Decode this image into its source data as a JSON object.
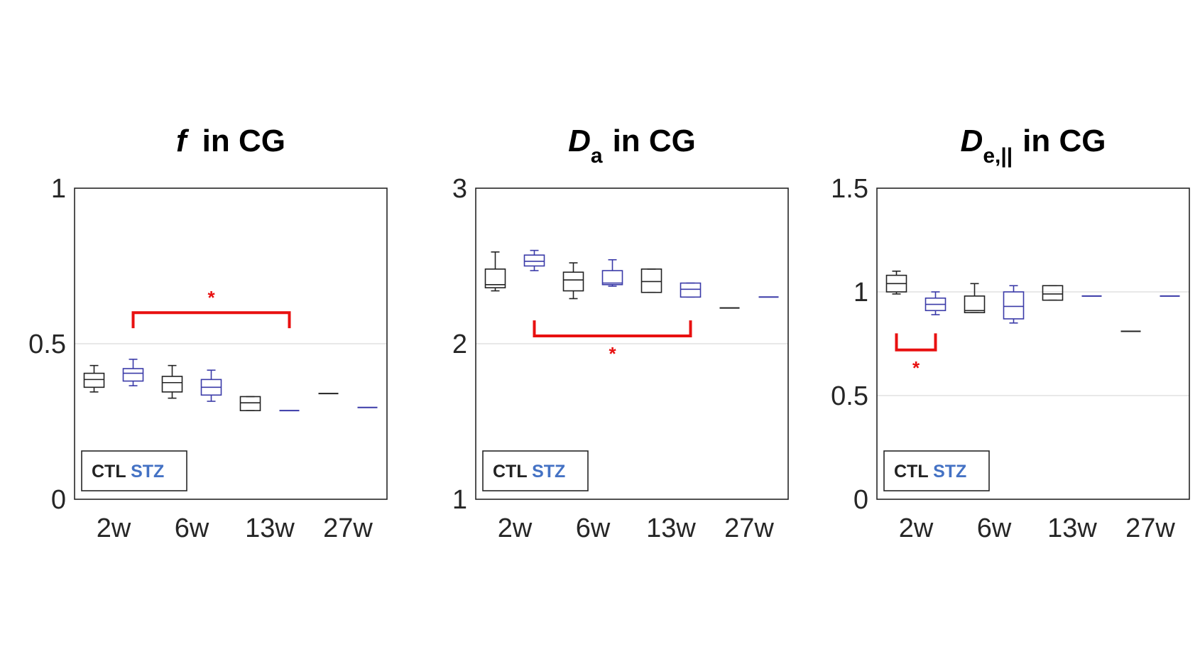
{
  "chart_data": [
    {
      "type": "box",
      "title_main": "f",
      "title_sub": "",
      "title_rest": "in CG",
      "title_main_italic": true,
      "categories": [
        "2w",
        "6w",
        "13w",
        "27w"
      ],
      "ylim": [
        0,
        1
      ],
      "yticks": [
        0,
        0.5,
        1
      ],
      "ytick_labels": [
        "0",
        "0.5",
        "1"
      ],
      "legend": {
        "ctl": "CTL",
        "stz": "STZ",
        "placement": "bottom-left"
      },
      "series": [
        {
          "name": "CTL",
          "color": "#222222",
          "boxes": [
            {
              "category": "2w",
              "min": 0.345,
              "q1": 0.36,
              "median": 0.385,
              "q3": 0.405,
              "max": 0.43
            },
            {
              "category": "6w",
              "min": 0.325,
              "q1": 0.345,
              "median": 0.375,
              "q3": 0.395,
              "max": 0.43
            },
            {
              "category": "13w",
              "min": 0.285,
              "q1": 0.285,
              "median": 0.31,
              "q3": 0.33,
              "max": 0.33
            },
            {
              "category": "27w",
              "min": 0.34,
              "q1": 0.34,
              "median": 0.34,
              "q3": 0.34,
              "max": 0.34
            }
          ]
        },
        {
          "name": "STZ",
          "color": "#3a3aa8",
          "boxes": [
            {
              "category": "2w",
              "min": 0.365,
              "q1": 0.38,
              "median": 0.405,
              "q3": 0.42,
              "max": 0.45
            },
            {
              "category": "6w",
              "min": 0.315,
              "q1": 0.335,
              "median": 0.36,
              "q3": 0.385,
              "max": 0.415
            },
            {
              "category": "13w",
              "min": 0.285,
              "q1": 0.285,
              "median": 0.285,
              "q3": 0.285,
              "max": 0.285
            },
            {
              "category": "27w",
              "min": 0.295,
              "q1": 0.295,
              "median": 0.295,
              "q3": 0.295,
              "max": 0.295
            }
          ]
        }
      ],
      "significance": [
        {
          "label": "*",
          "from": "STZ 2w",
          "to": "STZ 13w",
          "bracket_value": 0.6,
          "tick_end": 0.55,
          "side": "above"
        }
      ]
    },
    {
      "type": "box",
      "title_main": "D",
      "title_sub": "a",
      "title_rest": "in CG",
      "title_main_italic": true,
      "categories": [
        "2w",
        "6w",
        "13w",
        "27w"
      ],
      "ylim": [
        1,
        3
      ],
      "yticks": [
        1,
        2,
        3
      ],
      "ytick_labels": [
        "1",
        "2",
        "3"
      ],
      "legend": {
        "ctl": "CTL",
        "stz": "STZ",
        "placement": "bottom-left"
      },
      "series": [
        {
          "name": "CTL",
          "color": "#222222",
          "boxes": [
            {
              "category": "2w",
              "min": 2.34,
              "q1": 2.36,
              "median": 2.38,
              "q3": 2.48,
              "max": 2.59
            },
            {
              "category": "6w",
              "min": 2.29,
              "q1": 2.34,
              "median": 2.41,
              "q3": 2.46,
              "max": 2.52
            },
            {
              "category": "13w",
              "min": 2.33,
              "q1": 2.33,
              "median": 2.4,
              "q3": 2.48,
              "max": 2.48
            },
            {
              "category": "27w",
              "min": 2.23,
              "q1": 2.23,
              "median": 2.23,
              "q3": 2.23,
              "max": 2.23
            }
          ]
        },
        {
          "name": "STZ",
          "color": "#3a3aa8",
          "boxes": [
            {
              "category": "2w",
              "min": 2.47,
              "q1": 2.5,
              "median": 2.53,
              "q3": 2.57,
              "max": 2.6
            },
            {
              "category": "6w",
              "min": 2.37,
              "q1": 2.38,
              "median": 2.39,
              "q3": 2.47,
              "max": 2.54
            },
            {
              "category": "13w",
              "min": 2.3,
              "q1": 2.3,
              "median": 2.35,
              "q3": 2.39,
              "max": 2.39
            },
            {
              "category": "27w",
              "min": 2.3,
              "q1": 2.3,
              "median": 2.3,
              "q3": 2.3,
              "max": 2.3
            }
          ]
        }
      ],
      "significance": [
        {
          "label": "*",
          "from": "STZ 2w",
          "to": "STZ 13w",
          "bracket_value": 2.05,
          "tick_end": 2.15,
          "side": "below"
        }
      ]
    },
    {
      "type": "box",
      "title_main": "D",
      "title_sub": "e,||",
      "title_rest": "in CG",
      "title_main_italic": true,
      "categories": [
        "2w",
        "6w",
        "13w",
        "27w"
      ],
      "ylim": [
        0,
        1.5
      ],
      "yticks": [
        0,
        0.5,
        1,
        1.5
      ],
      "ytick_labels": [
        "0",
        "0.5",
        "1",
        "1.5"
      ],
      "legend": {
        "ctl": "CTL",
        "stz": "STZ",
        "placement": "bottom-left"
      },
      "series": [
        {
          "name": "CTL",
          "color": "#222222",
          "boxes": [
            {
              "category": "2w",
              "min": 0.99,
              "q1": 1.0,
              "median": 1.04,
              "q3": 1.08,
              "max": 1.1
            },
            {
              "category": "6w",
              "min": 0.9,
              "q1": 0.9,
              "median": 0.91,
              "q3": 0.98,
              "max": 1.04
            },
            {
              "category": "13w",
              "min": 0.96,
              "q1": 0.96,
              "median": 0.99,
              "q3": 1.03,
              "max": 1.03
            },
            {
              "category": "27w",
              "min": 0.81,
              "q1": 0.81,
              "median": 0.81,
              "q3": 0.81,
              "max": 0.81
            }
          ]
        },
        {
          "name": "STZ",
          "color": "#3a3aa8",
          "boxes": [
            {
              "category": "2w",
              "min": 0.89,
              "q1": 0.91,
              "median": 0.94,
              "q3": 0.97,
              "max": 1.0
            },
            {
              "category": "6w",
              "min": 0.85,
              "q1": 0.87,
              "median": 0.93,
              "q3": 1.0,
              "max": 1.03
            },
            {
              "category": "13w",
              "min": 0.98,
              "q1": 0.98,
              "median": 0.98,
              "q3": 0.98,
              "max": 0.98
            },
            {
              "category": "27w",
              "min": 0.98,
              "q1": 0.98,
              "median": 0.98,
              "q3": 0.98,
              "max": 0.98
            }
          ]
        }
      ],
      "significance": [
        {
          "label": "*",
          "from": "CTL 2w",
          "to": "STZ 2w",
          "bracket_value": 0.72,
          "tick_end": 0.8,
          "side": "below"
        }
      ]
    }
  ],
  "colors": {
    "ctl": "#222222",
    "stz": "#3a3aa8",
    "legend_stz_text": "#4472c4",
    "significance": "#e81010",
    "grid": "#d9d9d9",
    "axis": "#262626"
  }
}
